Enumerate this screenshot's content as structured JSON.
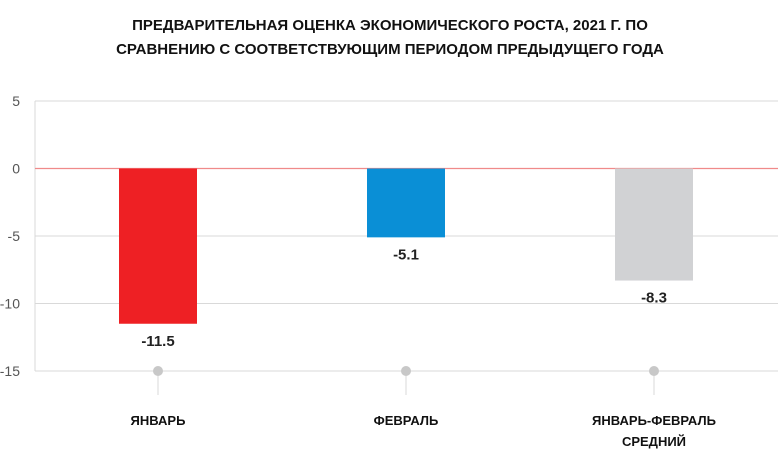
{
  "chart_data": {
    "type": "bar",
    "title_lines": [
      "ПРЕДВАРИТЕЛЬНАЯ ОЦЕНКА ЭКОНОМИЧЕСКОГО РОСТА, 2021 Г. ПО",
      "СРАВНЕНИЮ С СООТВЕТСТВУЮЩИМ ПЕРИОДОМ ПРЕДЫДУЩЕГО ГОДА"
    ],
    "categories": [
      [
        "ЯНВАРЬ"
      ],
      [
        "ФЕВРАЛЬ"
      ],
      [
        "ЯНВАРЬ-ФЕВРАЛЬ",
        "СРЕДНИЙ"
      ]
    ],
    "values": [
      -11.5,
      -5.1,
      -8.3
    ],
    "data_labels": [
      "-11.5",
      "-5.1",
      "-8.3"
    ],
    "bar_colors": [
      "#ee2024",
      "#0a8fd6",
      "#d1d2d4"
    ],
    "yticks": [
      5,
      0,
      -5,
      -10,
      -15
    ],
    "ytick_labels": [
      "5",
      "0",
      "-5",
      "-10",
      "-15"
    ],
    "ylim": [
      -15,
      5
    ],
    "zero_line_color": "#f08a8a",
    "grid": true,
    "xlabel": "",
    "ylabel": ""
  }
}
